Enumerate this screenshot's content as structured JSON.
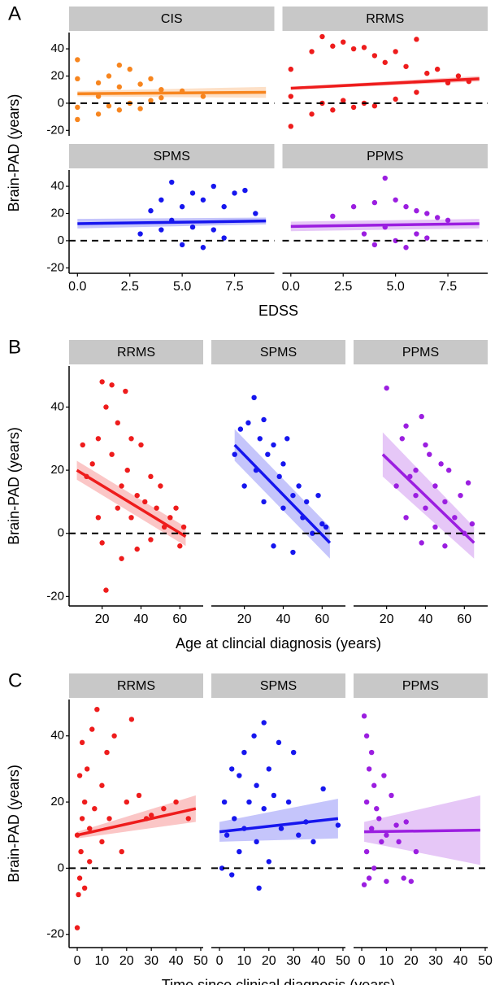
{
  "chart_data": [
    {
      "type": "scatter",
      "panel_label": "A",
      "ylabel": "Brain-PAD (years)",
      "xlabel": "EDSS",
      "columns": 2,
      "xlim": [
        -0.4,
        9.4
      ],
      "xticks": [
        {
          "value": 0,
          "label": "0.0"
        },
        {
          "value": 2.5,
          "label": "2.5"
        },
        {
          "value": 5,
          "label": "5.0"
        },
        {
          "value": 7.5,
          "label": "7.5"
        }
      ],
      "ylim": [
        -24,
        52
      ],
      "yticks": [
        -20,
        0,
        20,
        40
      ],
      "hline": 0,
      "facets": [
        {
          "title": "CIS",
          "color": "#f7851e",
          "x": [
            0,
            0,
            0,
            0,
            1,
            1,
            1,
            1.5,
            1.5,
            2,
            2,
            2,
            2.5,
            2.5,
            3,
            3,
            3.5,
            3.5,
            4,
            4,
            5,
            6
          ],
          "y": [
            32,
            18,
            -3,
            -12,
            15,
            -8,
            5,
            20,
            -2,
            12,
            -5,
            28,
            25,
            0,
            14,
            -4,
            18,
            2,
            10,
            4,
            9,
            5
          ],
          "fit": {
            "x": [
              0,
              9
            ],
            "y": [
              7,
              8
            ],
            "lower": [
              5,
              4
            ],
            "upper": [
              9,
              12
            ]
          }
        },
        {
          "title": "RRMS",
          "color": "#ee1c1c",
          "x": [
            0,
            0,
            0,
            1,
            1,
            1.5,
            1.5,
            2,
            2,
            2.5,
            2.5,
            3,
            3,
            3.5,
            3.5,
            4,
            4,
            4.5,
            5,
            5,
            5.5,
            6,
            6,
            6.5,
            7,
            7.5,
            8,
            8.5
          ],
          "y": [
            25,
            -17,
            5,
            38,
            -8,
            49,
            0,
            42,
            -5,
            45,
            2,
            40,
            -3,
            41,
            0,
            35,
            -2,
            30,
            38,
            3,
            27,
            47,
            8,
            22,
            25,
            15,
            20,
            16
          ],
          "fit": {
            "x": [
              0,
              9
            ],
            "y": [
              11,
              18
            ],
            "lower": [
              10,
              16
            ],
            "upper": [
              12,
              20
            ]
          }
        },
        {
          "title": "SPMS",
          "color": "#1616ee",
          "x": [
            3,
            3.5,
            4,
            4,
            4.5,
            4.5,
            5,
            5,
            5.5,
            5.5,
            6,
            6,
            6.5,
            6.5,
            7,
            7,
            7.5,
            8,
            8.5
          ],
          "y": [
            5,
            22,
            30,
            8,
            43,
            15,
            25,
            -3,
            35,
            10,
            30,
            -5,
            40,
            8,
            25,
            2,
            35,
            37,
            20
          ],
          "fit": {
            "x": [
              0,
              9
            ],
            "y": [
              12.5,
              14.5
            ],
            "lower": [
              9,
              12
            ],
            "upper": [
              16,
              17
            ]
          }
        },
        {
          "title": "PPMS",
          "color": "#9b1ee0",
          "x": [
            2,
            3,
            3.5,
            4,
            4,
            4.5,
            4.5,
            5,
            5,
            5.5,
            5.5,
            6,
            6,
            6.5,
            6.5,
            7,
            7.5
          ],
          "y": [
            18,
            25,
            5,
            28,
            -3,
            46,
            10,
            30,
            0,
            25,
            -5,
            22,
            5,
            20,
            2,
            17,
            15
          ],
          "fit": {
            "x": [
              0,
              9
            ],
            "y": [
              10.5,
              12.5
            ],
            "lower": [
              7,
              9
            ],
            "upper": [
              14,
              16
            ]
          }
        }
      ]
    },
    {
      "type": "scatter",
      "panel_label": "B",
      "ylabel": "Brain-PAD (years)",
      "xlabel": "Age at clincial diagnosis (years)",
      "columns": 3,
      "xlim": [
        3,
        72
      ],
      "xticks": [
        20,
        40,
        60
      ],
      "ylim": [
        -23,
        53
      ],
      "yticks": [
        -20,
        0,
        20,
        40
      ],
      "hline": 0,
      "facets": [
        {
          "title": "RRMS",
          "color": "#ee1c1c",
          "x": [
            10,
            12,
            15,
            18,
            18,
            20,
            20,
            22,
            22,
            25,
            25,
            28,
            28,
            30,
            30,
            32,
            33,
            35,
            35,
            38,
            38,
            40,
            42,
            45,
            45,
            48,
            50,
            52,
            55,
            58,
            60,
            62
          ],
          "y": [
            28,
            18,
            22,
            30,
            5,
            48,
            -3,
            40,
            -18,
            47,
            25,
            8,
            35,
            15,
            -8,
            45,
            20,
            5,
            30,
            12,
            -5,
            28,
            10,
            18,
            -2,
            8,
            15,
            2,
            5,
            8,
            -4,
            2
          ],
          "fit": {
            "x": [
              7,
              63
            ],
            "y": [
              20,
              -1
            ],
            "lower": [
              17,
              -4
            ],
            "upper": [
              23,
              2
            ]
          }
        },
        {
          "title": "SPMS",
          "color": "#1616ee",
          "x": [
            15,
            18,
            20,
            22,
            25,
            26,
            28,
            30,
            30,
            32,
            35,
            35,
            38,
            40,
            40,
            42,
            45,
            45,
            48,
            50,
            52,
            55,
            58,
            60,
            62
          ],
          "y": [
            25,
            33,
            15,
            35,
            43,
            20,
            30,
            10,
            36,
            25,
            28,
            -4,
            18,
            22,
            8,
            30,
            12,
            -6,
            15,
            5,
            10,
            0,
            12,
            3,
            2
          ],
          "fit": {
            "x": [
              15,
              64
            ],
            "y": [
              28,
              -3
            ],
            "lower": [
              23,
              -8
            ],
            "upper": [
              33,
              2
            ]
          }
        },
        {
          "title": "PPMS",
          "color": "#9b1ee0",
          "x": [
            20,
            25,
            28,
            30,
            30,
            32,
            35,
            35,
            38,
            38,
            40,
            40,
            42,
            45,
            45,
            48,
            50,
            50,
            52,
            55,
            58,
            60,
            62,
            64
          ],
          "y": [
            46,
            15,
            30,
            34,
            5,
            18,
            12,
            20,
            37,
            -3,
            28,
            8,
            25,
            15,
            2,
            22,
            10,
            -4,
            20,
            5,
            12,
            0,
            16,
            3
          ],
          "fit": {
            "x": [
              18,
              65
            ],
            "y": [
              25,
              -3
            ],
            "lower": [
              18,
              -8
            ],
            "upper": [
              32,
              2
            ]
          }
        }
      ]
    },
    {
      "type": "scatter",
      "panel_label": "C",
      "ylabel": "Brain-PAD (years)",
      "xlabel": "Time since clinical diagnosis (years)",
      "columns": 3,
      "xlim": [
        -3.3,
        51
      ],
      "xticks": [
        0,
        10,
        20,
        30,
        40,
        50
      ],
      "ylim": [
        -24,
        51
      ],
      "yticks": [
        -20,
        0,
        20,
        40
      ],
      "hline": 0,
      "facets": [
        {
          "title": "RRMS",
          "color": "#ee1c1c",
          "x": [
            0,
            0,
            0.5,
            1,
            1,
            1.5,
            2,
            2,
            3,
            3,
            4,
            5,
            5,
            6,
            7,
            8,
            10,
            10,
            12,
            13,
            15,
            18,
            20,
            22,
            25,
            28,
            30,
            35,
            40,
            45
          ],
          "y": [
            -18,
            10,
            -8,
            28,
            -3,
            5,
            38,
            15,
            20,
            -6,
            30,
            12,
            2,
            42,
            18,
            48,
            25,
            8,
            35,
            15,
            40,
            5,
            20,
            45,
            22,
            15,
            16,
            18,
            20,
            15
          ],
          "fit": {
            "x": [
              0,
              48
            ],
            "y": [
              10,
              18
            ],
            "lower": [
              9,
              14
            ],
            "upper": [
              11,
              22
            ]
          }
        },
        {
          "title": "SPMS",
          "color": "#1616ee",
          "x": [
            1,
            2,
            3,
            5,
            5,
            6,
            8,
            8,
            10,
            10,
            12,
            14,
            15,
            15,
            16,
            18,
            18,
            20,
            20,
            22,
            24,
            25,
            28,
            30,
            32,
            35,
            38,
            42,
            48
          ],
          "y": [
            0,
            20,
            10,
            30,
            -2,
            15,
            28,
            5,
            35,
            12,
            20,
            40,
            8,
            25,
            -6,
            44,
            18,
            30,
            2,
            22,
            38,
            12,
            20,
            35,
            10,
            14,
            8,
            24,
            13
          ],
          "fit": {
            "x": [
              0,
              48
            ],
            "y": [
              11,
              15
            ],
            "lower": [
              8,
              9
            ],
            "upper": [
              14,
              21
            ]
          }
        },
        {
          "title": "PPMS",
          "color": "#9b1ee0",
          "x": [
            1,
            1,
            2,
            2,
            2,
            3,
            3,
            4,
            4,
            5,
            5,
            6,
            7,
            8,
            9,
            10,
            10,
            12,
            14,
            15,
            17,
            18,
            20,
            22
          ],
          "y": [
            46,
            -5,
            40,
            5,
            20,
            30,
            -3,
            35,
            12,
            25,
            0,
            18,
            15,
            8,
            28,
            10,
            -4,
            22,
            13,
            8,
            -3,
            14,
            -4,
            5
          ],
          "fit": {
            "x": [
              1,
              48
            ],
            "y": [
              11,
              11.5
            ],
            "lower": [
              8,
              1
            ],
            "upper": [
              14,
              22
            ]
          }
        }
      ]
    }
  ]
}
